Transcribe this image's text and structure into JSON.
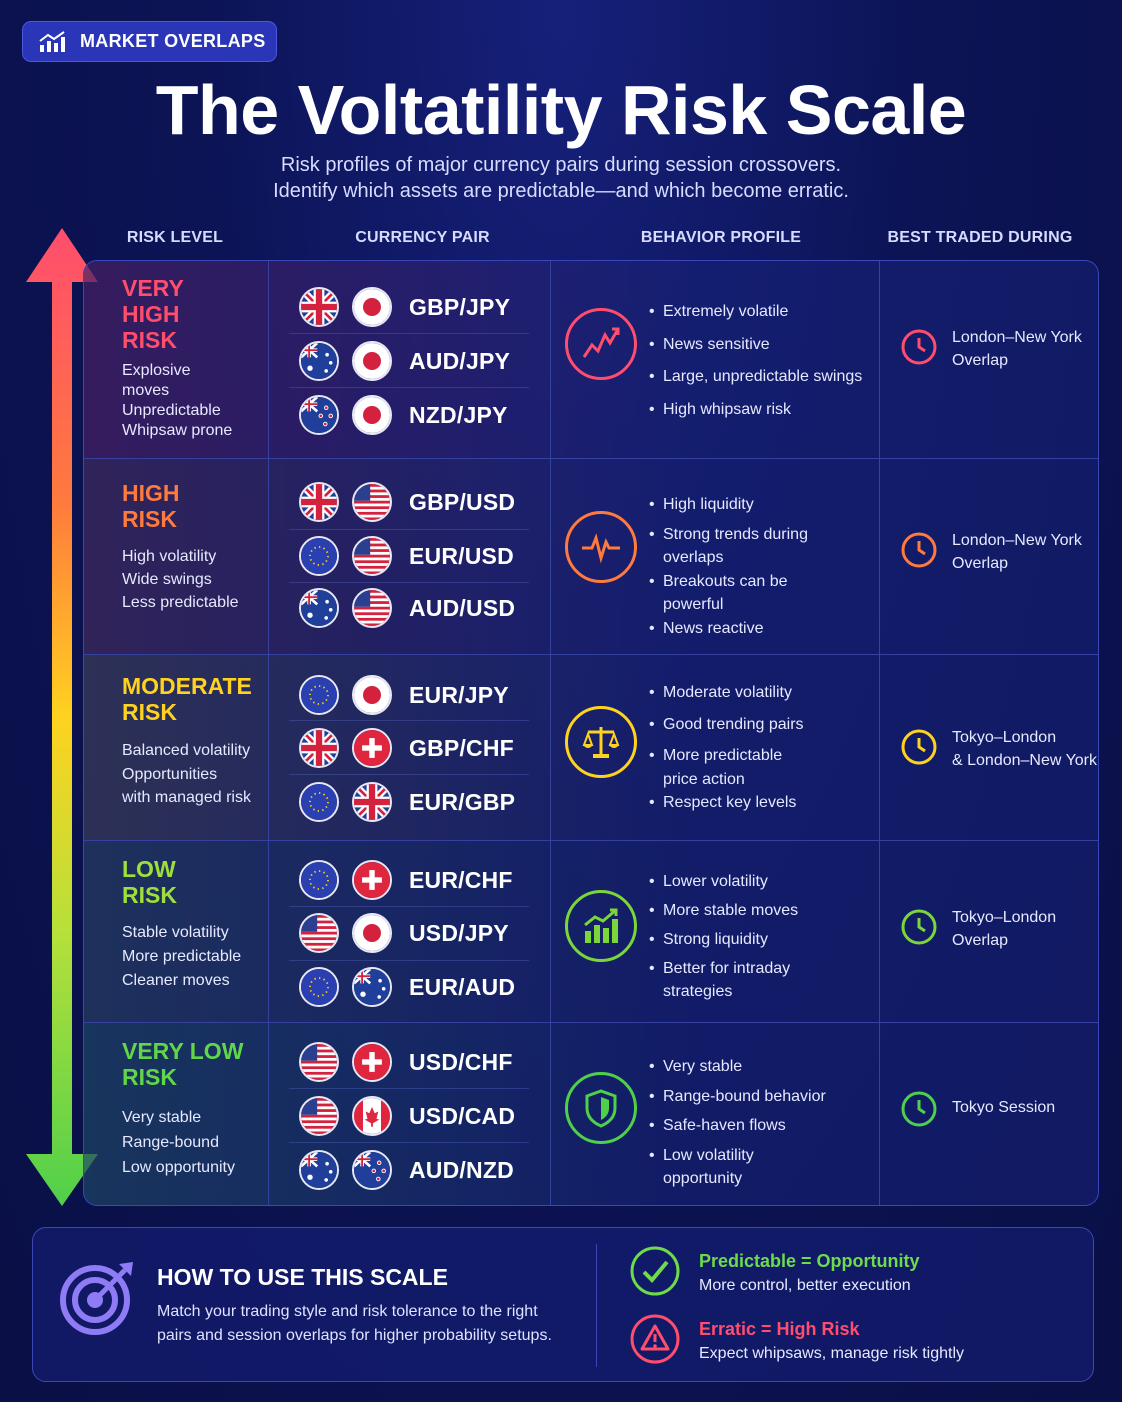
{
  "badge": {
    "label": "MARKET OVERLAPS",
    "icon": "bar-chart-trend-icon"
  },
  "title": "The Voltatility Risk Scale",
  "subtitle": {
    "line1": "Risk profiles of major currency pairs during session crossovers.",
    "line2": "Identify which assets are predictable—and which become erratic."
  },
  "columns": [
    "RISK LEVEL",
    "CURRENCY PAIR",
    "BEHAVIOR PROFILE",
    "BEST TRADED DURING"
  ],
  "rows": [
    {
      "title": [
        "VERY",
        "HIGH",
        "RISK"
      ],
      "color": "#ff4d6d",
      "desc": [
        "Explosive",
        "moves",
        "Unpredictable",
        "Whipsaw prone"
      ],
      "pairs": [
        {
          "name": "GBP/JPY",
          "flags": [
            "gb",
            "jp"
          ]
        },
        {
          "name": "AUD/JPY",
          "flags": [
            "au",
            "jp"
          ]
        },
        {
          "name": "NZD/JPY",
          "flags": [
            "nz",
            "jp"
          ]
        }
      ],
      "icon": "chart-volatile-icon",
      "bullets": [
        "Extremely volatile",
        "News sensitive",
        "Large, unpredictable swings",
        "High whipsaw risk"
      ],
      "session": [
        "London–New York",
        "Overlap"
      ]
    },
    {
      "title": [
        "HIGH",
        "RISK"
      ],
      "color": "#ff7a3d",
      "desc": [
        "High volatility",
        "Wide swings",
        "Less predictable"
      ],
      "pairs": [
        {
          "name": "GBP/USD",
          "flags": [
            "gb",
            "us"
          ]
        },
        {
          "name": "EUR/USD",
          "flags": [
            "eu",
            "us"
          ]
        },
        {
          "name": "AUD/USD",
          "flags": [
            "au",
            "us"
          ]
        }
      ],
      "icon": "pulse-icon",
      "bullets": [
        "High liquidity",
        "Strong trends during",
        "overlaps",
        "Breakouts can be",
        "powerful",
        "News reactive"
      ],
      "session": [
        "London–New York",
        "Overlap"
      ]
    },
    {
      "title": [
        "MODERATE",
        "RISK"
      ],
      "color": "#ffd21f",
      "desc": [
        "Balanced volatility",
        "Opportunities",
        "with managed risk"
      ],
      "pairs": [
        {
          "name": "EUR/JPY",
          "flags": [
            "eu",
            "jp"
          ]
        },
        {
          "name": "GBP/CHF",
          "flags": [
            "gb",
            "ch"
          ]
        },
        {
          "name": "EUR/GBP",
          "flags": [
            "eu",
            "gb"
          ]
        }
      ],
      "icon": "balance-scale-icon",
      "bullets": [
        "Moderate volatility",
        "Good trending pairs",
        "More predictable",
        "price action",
        "Respect key levels"
      ],
      "session": [
        "Tokyo–London",
        "& London–New York"
      ]
    },
    {
      "title": [
        "LOW",
        "RISK"
      ],
      "color": "#9ee03a",
      "desc": [
        "Stable volatility",
        "More predictable",
        "Cleaner moves"
      ],
      "pairs": [
        {
          "name": "EUR/CHF",
          "flags": [
            "eu",
            "ch"
          ]
        },
        {
          "name": "USD/JPY",
          "flags": [
            "us",
            "jp"
          ]
        },
        {
          "name": "EUR/AUD",
          "flags": [
            "eu",
            "au"
          ]
        }
      ],
      "icon": "growth-bars-icon",
      "bullets": [
        "Lower volatility",
        "More stable moves",
        "Strong liquidity",
        "Better for intraday",
        "strategies"
      ],
      "session": [
        "Tokyo–London",
        "Overlap"
      ]
    },
    {
      "title": [
        "VERY LOW",
        "RISK"
      ],
      "color": "#62d64a",
      "desc": [
        "Very stable",
        "Range-bound",
        "Low opportunity"
      ],
      "pairs": [
        {
          "name": "USD/CHF",
          "flags": [
            "us",
            "ch"
          ]
        },
        {
          "name": "USD/CAD",
          "flags": [
            "us",
            "ca"
          ]
        },
        {
          "name": "AUD/NZD",
          "flags": [
            "au",
            "nz"
          ]
        }
      ],
      "icon": "shield-icon",
      "bullets": [
        "Very stable",
        "Range-bound behavior",
        "Safe-haven flows",
        "Low volatility",
        "opportunity"
      ],
      "session": [
        "Tokyo Session"
      ]
    }
  ],
  "howto": {
    "icon": "target-icon",
    "title": "HOW TO USE THIS SCALE",
    "line1": "Match your trading style and risk tolerance to the right",
    "line2": "pairs and session overlaps for higher probability setups.",
    "keys": [
      {
        "icon": "check-circle-icon",
        "title": "Predictable = Opportunity",
        "sub": "More control, better execution",
        "color": "#6ddb4a"
      },
      {
        "icon": "warning-icon",
        "title": "Erratic = High Risk",
        "sub": "Expect whipsaws, manage risk tightly",
        "color": "#ff4d6d"
      }
    ]
  }
}
